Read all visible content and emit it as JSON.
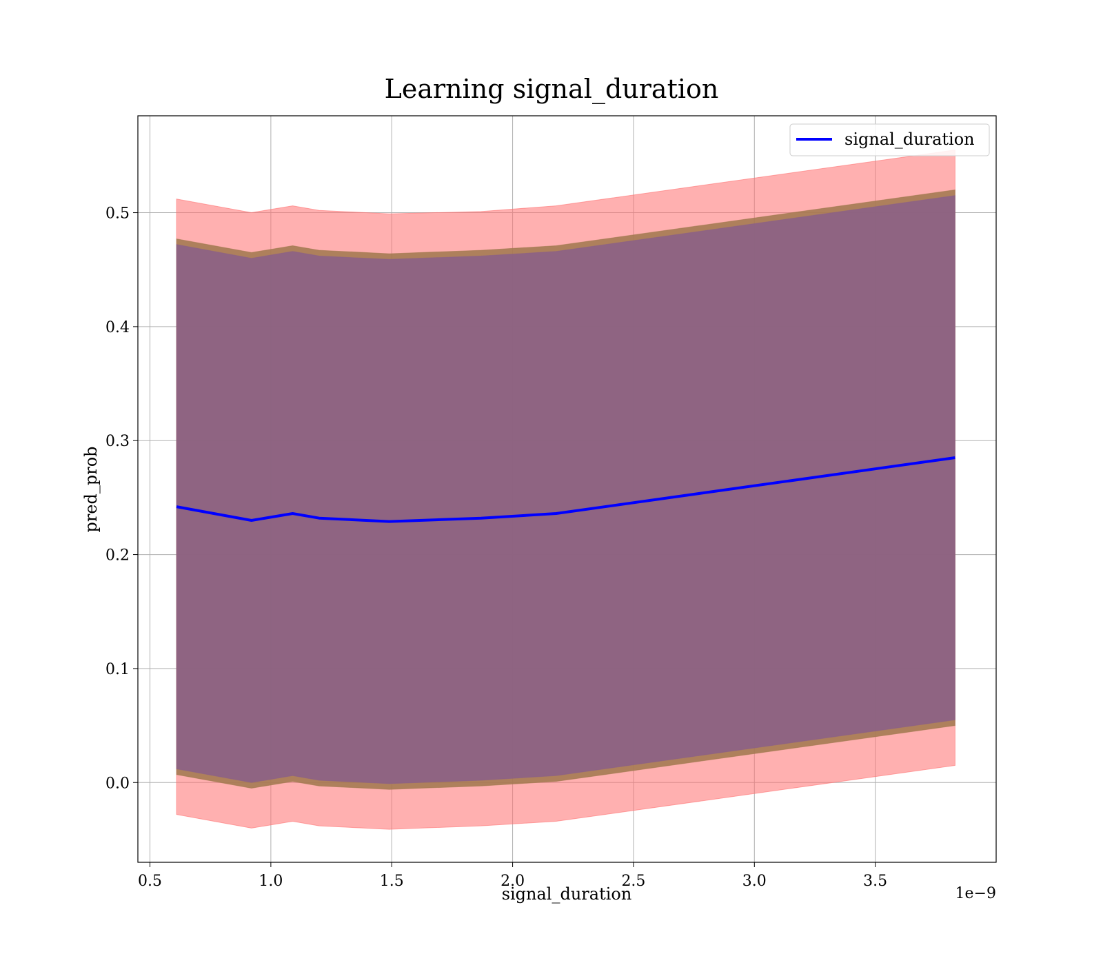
{
  "chart_data": {
    "type": "line",
    "title": "Learning signal_duration",
    "xlabel": "signal_duration",
    "ylabel": "pred_prob",
    "x_offset_label": "1e−9",
    "xlim": [
      0.45,
      4.0
    ],
    "ylim": [
      -0.07,
      0.585
    ],
    "xticks": [
      0.5,
      1.0,
      1.5,
      2.0,
      2.5,
      3.0,
      3.5
    ],
    "xtick_labels": [
      "0.5",
      "1.0",
      "1.5",
      "2.0",
      "2.5",
      "3.0",
      "3.5"
    ],
    "yticks": [
      0.0,
      0.1,
      0.2,
      0.3,
      0.4,
      0.5
    ],
    "ytick_labels": [
      "0.0",
      "0.1",
      "0.2",
      "0.3",
      "0.4",
      "0.5"
    ],
    "grid": true,
    "legend_position": "top-right",
    "x": [
      0.61,
      0.92,
      1.09,
      1.2,
      1.49,
      1.87,
      2.18,
      3.83
    ],
    "series": [
      {
        "name": "signal_duration",
        "color": "#0000ff",
        "values": [
          0.242,
          0.23,
          0.236,
          0.232,
          0.229,
          0.232,
          0.236,
          0.285
        ]
      }
    ],
    "bands": [
      {
        "color": "#ff6f6f",
        "opacity": 0.55,
        "upper": [
          0.512,
          0.5,
          0.506,
          0.502,
          0.499,
          0.501,
          0.506,
          0.555
        ],
        "lower": [
          -0.028,
          -0.04,
          -0.034,
          -0.038,
          -0.041,
          -0.038,
          -0.034,
          0.015
        ]
      },
      {
        "color": "#a0784e",
        "opacity": 0.85,
        "upper": [
          0.477,
          0.465,
          0.471,
          0.467,
          0.464,
          0.467,
          0.471,
          0.52
        ],
        "lower": [
          0.007,
          -0.005,
          0.001,
          -0.003,
          -0.006,
          -0.003,
          0.001,
          0.05
        ]
      },
      {
        "color": "#8a5f88",
        "opacity": 0.85,
        "upper": [
          0.472,
          0.46,
          0.466,
          0.462,
          0.459,
          0.462,
          0.466,
          0.515
        ],
        "lower": [
          0.012,
          0.0,
          0.006,
          0.002,
          -0.001,
          0.002,
          0.006,
          0.055
        ]
      }
    ]
  }
}
